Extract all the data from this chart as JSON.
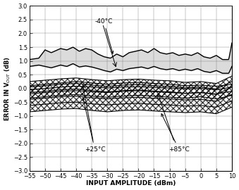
{
  "xlim": [
    -55,
    10
  ],
  "ylim": [
    -3.0,
    3.0
  ],
  "xticks": [
    -55,
    -50,
    -45,
    -40,
    -35,
    -30,
    -25,
    -20,
    -15,
    -10,
    -5,
    0,
    5,
    10
  ],
  "yticks": [
    -3.0,
    -2.5,
    -2.0,
    -1.5,
    -1.0,
    -0.5,
    0.0,
    0.5,
    1.0,
    1.5,
    2.0,
    2.5,
    3.0
  ],
  "xlabel": "INPUT AMPLITUDE (dBm)",
  "background_color": "#ffffff",
  "grid_color": "#777777",
  "label_neg40": "-40°C",
  "label_25": "+25°C",
  "label_85": "+85°C"
}
